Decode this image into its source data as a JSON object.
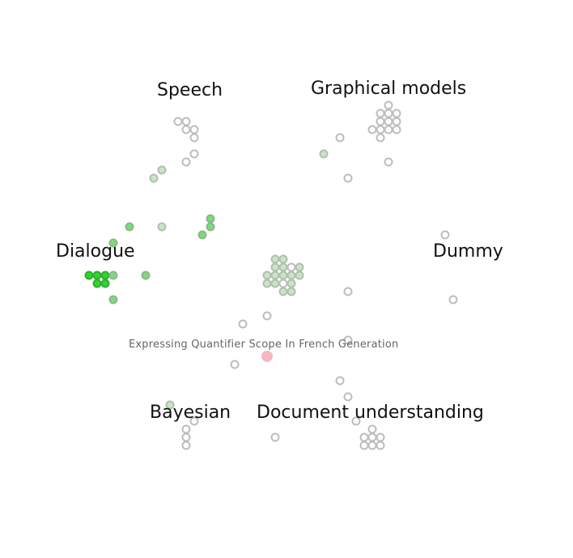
{
  "clusters": {
    "speech": "Speech",
    "graphical_models": "Graphical models",
    "dialogue": "Dialogue",
    "dummy": "Dummy",
    "bayesian": "Bayesian",
    "document_understanding": "Document understanding"
  },
  "hovered_item": {
    "title": "Expressing Quantifier Scope In French Generation"
  },
  "colors": {
    "node_stroke_gray": "#bdbdbd",
    "node_fill_gray": "#ffffff",
    "node_light_green_fill": "#c4e9c0",
    "node_light_green_stroke": "#b5bdb3",
    "node_mid_green_fill": "#79dd79",
    "node_mid_green_stroke": "#8fb58f",
    "node_bright_green_fill": "#22dd22",
    "node_bright_green_stroke": "#3aa83a",
    "highlight_pink": "#f7b7c0",
    "label_text": "#111111",
    "hover_text": "#666666"
  }
}
